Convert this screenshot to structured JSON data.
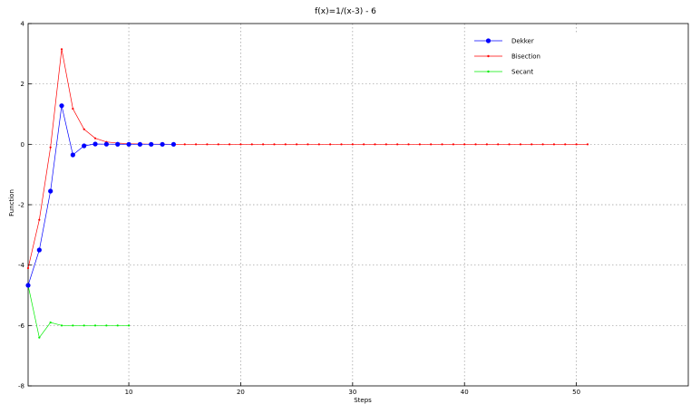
{
  "chart_data": {
    "type": "line",
    "title": "f(x)=1/(x-3) - 6",
    "xlabel": "Steps",
    "ylabel": "Function",
    "xlim": [
      1,
      60
    ],
    "ylim": [
      -8,
      4
    ],
    "xticks": [
      10,
      20,
      30,
      40,
      50
    ],
    "yticks": [
      -8,
      -6,
      -4,
      -2,
      0,
      2,
      4
    ],
    "grid": true,
    "legend": "top-right",
    "series": [
      {
        "name": "Dekker",
        "color": "#0000ff",
        "marker": "circle",
        "x": [
          1,
          2,
          3,
          4,
          5,
          6,
          7,
          8,
          9,
          10,
          11,
          12,
          13,
          14
        ],
        "y": [
          -4.67,
          -3.5,
          -1.55,
          1.28,
          -0.35,
          -0.05,
          0.01,
          0.005,
          0.002,
          0.001,
          0,
          0,
          0,
          0
        ]
      },
      {
        "name": "Bisection",
        "color": "#ff0000",
        "marker": "dot",
        "x": [
          1,
          2,
          3,
          4,
          5,
          6,
          7,
          8,
          9,
          10,
          11,
          12,
          13,
          14,
          15,
          16,
          17,
          18,
          19,
          20,
          21,
          22,
          23,
          24,
          25,
          26,
          27,
          28,
          29,
          30,
          31,
          32,
          33,
          34,
          35,
          36,
          37,
          38,
          39,
          40,
          41,
          42,
          43,
          44,
          45,
          46,
          47,
          48,
          49,
          50,
          51
        ],
        "y": [
          -4.1,
          -2.5,
          -0.1,
          3.15,
          1.18,
          0.5,
          0.2,
          0.08,
          0.04,
          0.02,
          0.01,
          0.005,
          0.002,
          0.001,
          0,
          0,
          0,
          0,
          0,
          0,
          0,
          0,
          0,
          0,
          0,
          0,
          0,
          0,
          0,
          0,
          0,
          0,
          0,
          0,
          0,
          0,
          0,
          0,
          0,
          0,
          0,
          0,
          0,
          0,
          0,
          0,
          0,
          0,
          0,
          0,
          0
        ]
      },
      {
        "name": "Secant",
        "color": "#00ee00",
        "marker": "dot",
        "x": [
          1,
          2,
          3,
          4,
          5,
          6,
          7,
          8,
          9,
          10
        ],
        "y": [
          -4.67,
          -6.4,
          -5.9,
          -6.0,
          -6.0,
          -6.0,
          -6.0,
          -6.0,
          -6.0,
          -6.0
        ]
      }
    ]
  }
}
